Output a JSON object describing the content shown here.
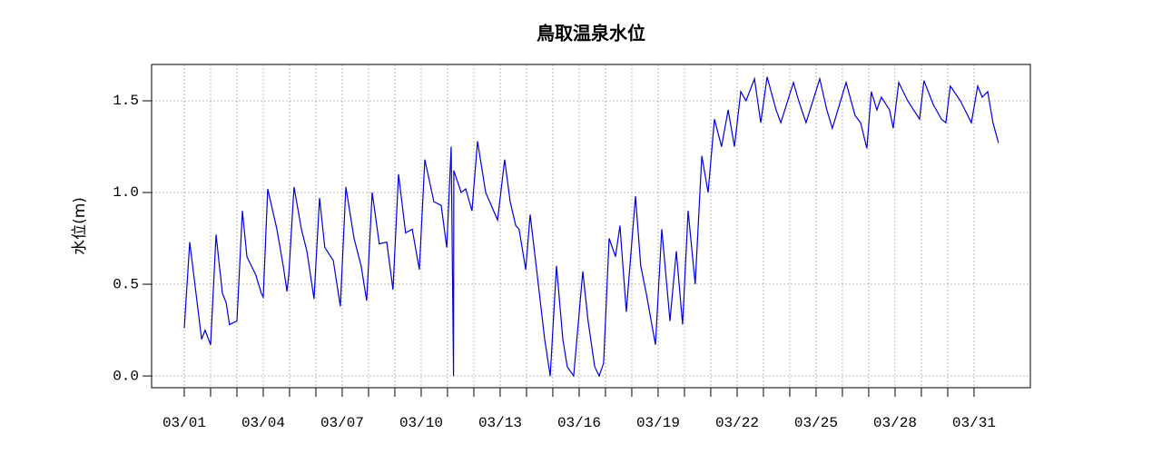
{
  "chart_data": {
    "type": "line",
    "title": "鳥取温泉水位",
    "y_label": "水位(m)",
    "color": "#0000dd",
    "grid": true,
    "x": [
      1.0,
      1.21,
      1.66,
      1.79,
      2.0,
      2.21,
      2.45,
      2.59,
      2.72,
      3.0,
      3.21,
      3.38,
      3.72,
      3.93,
      4.0,
      4.17,
      4.52,
      4.76,
      4.9,
      4.97,
      5.17,
      5.45,
      5.66,
      5.93,
      6.14,
      6.34,
      6.66,
      6.93,
      7.14,
      7.45,
      7.72,
      7.93,
      8.14,
      8.41,
      8.69,
      8.93,
      9.14,
      9.41,
      9.66,
      9.93,
      10.14,
      10.48,
      10.76,
      10.97,
      11.14,
      11.23,
      11.24,
      11.52,
      11.69,
      11.93,
      12.14,
      12.45,
      12.69,
      12.9,
      13.17,
      13.38,
      13.59,
      13.72,
      13.97,
      14.14,
      14.41,
      14.69,
      14.9,
      15.14,
      15.38,
      15.55,
      15.79,
      16.14,
      16.34,
      16.59,
      16.76,
      16.93,
      17.14,
      17.38,
      17.55,
      17.79,
      18.14,
      18.34,
      18.55,
      18.9,
      19.14,
      19.45,
      19.69,
      19.93,
      20.14,
      20.41,
      20.66,
      20.9,
      21.14,
      21.41,
      21.66,
      21.9,
      22.14,
      22.34,
      22.66,
      22.9,
      23.14,
      23.48,
      23.66,
      24.14,
      24.34,
      24.62,
      25.14,
      25.41,
      25.62,
      26.14,
      26.48,
      26.69,
      26.93,
      27.1,
      27.31,
      27.48,
      27.79,
      27.93,
      28.14,
      28.48,
      28.93,
      29.1,
      29.45,
      29.76,
      29.93,
      30.1,
      30.48,
      30.9,
      31.14,
      31.31,
      31.52,
      31.72,
      31.93
    ],
    "values": [
      0.26,
      0.73,
      0.2,
      0.25,
      0.17,
      0.77,
      0.45,
      0.4,
      0.28,
      0.3,
      0.9,
      0.65,
      0.55,
      0.45,
      0.43,
      1.02,
      0.8,
      0.6,
      0.46,
      0.55,
      1.03,
      0.8,
      0.68,
      0.42,
      0.97,
      0.7,
      0.63,
      0.38,
      1.03,
      0.75,
      0.6,
      0.41,
      1.0,
      0.72,
      0.73,
      0.47,
      1.1,
      0.78,
      0.8,
      0.58,
      1.18,
      0.95,
      0.93,
      0.7,
      1.25,
      0.0,
      1.12,
      1.0,
      1.02,
      0.9,
      1.28,
      1.0,
      0.92,
      0.85,
      1.18,
      0.95,
      0.82,
      0.8,
      0.58,
      0.88,
      0.55,
      0.2,
      0.0,
      0.6,
      0.2,
      0.05,
      0.0,
      0.57,
      0.3,
      0.05,
      0.0,
      0.07,
      0.75,
      0.65,
      0.82,
      0.35,
      0.98,
      0.6,
      0.45,
      0.17,
      0.8,
      0.3,
      0.68,
      0.28,
      0.9,
      0.5,
      1.2,
      1.0,
      1.4,
      1.25,
      1.45,
      1.25,
      1.55,
      1.5,
      1.62,
      1.38,
      1.63,
      1.45,
      1.38,
      1.6,
      1.5,
      1.38,
      1.62,
      1.45,
      1.35,
      1.6,
      1.42,
      1.38,
      1.24,
      1.55,
      1.45,
      1.52,
      1.45,
      1.35,
      1.6,
      1.5,
      1.4,
      1.61,
      1.48,
      1.4,
      1.38,
      1.58,
      1.5,
      1.38,
      1.58,
      1.52,
      1.55,
      1.38,
      1.27
    ],
    "xlim": [
      -0.24,
      33.14
    ],
    "xticks": [
      {
        "value": 1,
        "label": "03/01"
      },
      {
        "value": 4,
        "label": "03/04"
      },
      {
        "value": 7,
        "label": "03/07"
      },
      {
        "value": 10,
        "label": "03/10"
      },
      {
        "value": 13,
        "label": "03/13"
      },
      {
        "value": 16,
        "label": "03/16"
      },
      {
        "value": 19,
        "label": "03/19"
      },
      {
        "value": 22,
        "label": "03/22"
      },
      {
        "value": 25,
        "label": "03/25"
      },
      {
        "value": 28,
        "label": "03/28"
      },
      {
        "value": 31,
        "label": "03/31"
      }
    ],
    "xminor_ticks": [
      2,
      3,
      5,
      6,
      8,
      9,
      11,
      12,
      14,
      15,
      17,
      18,
      20,
      21,
      23,
      24,
      26,
      27,
      29,
      30
    ],
    "ylim": [
      -0.064,
      1.698
    ],
    "yticks": [
      {
        "value": 0,
        "label": "0.0"
      },
      {
        "value": 0.5,
        "label": "0.5"
      },
      {
        "value": 1,
        "label": "1.0"
      },
      {
        "value": 1.5,
        "label": "1.5"
      }
    ]
  }
}
